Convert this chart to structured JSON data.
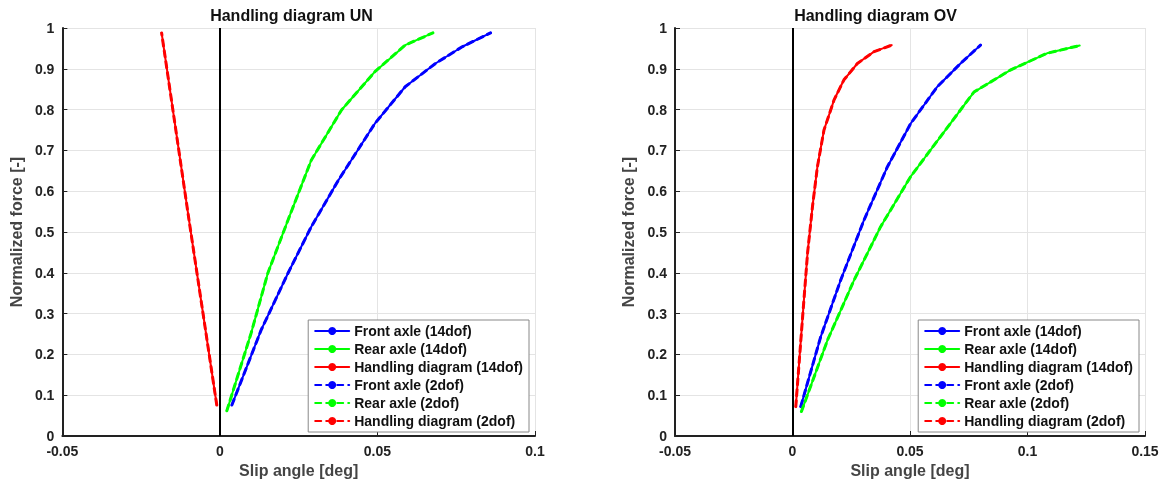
{
  "chart_data": [
    {
      "type": "line",
      "title": "Handling diagram UN",
      "xlabel": "Slip angle [deg]",
      "ylabel": "Normalized force [-]",
      "xlim": [
        -0.05,
        0.1
      ],
      "xticks": [
        -0.05,
        0,
        0.05,
        0.1
      ],
      "ylim": [
        0,
        1
      ],
      "yticks": [
        0,
        0.1,
        0.2,
        0.3,
        0.4,
        0.5,
        0.6,
        0.7,
        0.8,
        0.9,
        1
      ],
      "grid": true,
      "legend": "bottom right",
      "marker": "none",
      "ref_lines": [
        {
          "axis": "x",
          "value": 0,
          "color": "#000000"
        }
      ],
      "series": [
        {
          "name": "Front axle (14dof)",
          "color": "#0000ff",
          "line_style": "solid",
          "x": [
            0.0038,
            0.0131,
            0.0216,
            0.029,
            0.0376,
            0.0492,
            0.0588,
            0.0684,
            0.0769,
            0.0859
          ],
          "values": [
            0.076,
            0.26,
            0.399,
            0.513,
            0.627,
            0.766,
            0.856,
            0.913,
            0.954,
            0.988
          ]
        },
        {
          "name": "Rear axle (14dof)",
          "color": "#00ff00",
          "line_style": "solid",
          "x": [
            0.0022,
            0.0099,
            0.0152,
            0.0216,
            0.029,
            0.0386,
            0.0492,
            0.0588,
            0.0676
          ],
          "values": [
            0.062,
            0.252,
            0.399,
            0.529,
            0.676,
            0.799,
            0.893,
            0.958,
            0.988
          ]
        },
        {
          "name": "Handling diagram (14dof)",
          "color": "#ff0000",
          "line_style": "solid",
          "x": [
            -0.001,
            -0.0098,
            -0.0185
          ],
          "values": [
            0.076,
            0.529,
            0.988
          ]
        },
        {
          "name": "Front axle (2dof)",
          "color": "#0000ff",
          "line_style": "dashed",
          "x": [
            0.0038,
            0.0131,
            0.0216,
            0.029,
            0.0376,
            0.0492,
            0.0588,
            0.0684,
            0.0769,
            0.0859
          ],
          "values": [
            0.076,
            0.26,
            0.399,
            0.513,
            0.627,
            0.766,
            0.856,
            0.913,
            0.954,
            0.988
          ]
        },
        {
          "name": "Rear axle (2dof)",
          "color": "#00ff00",
          "line_style": "dashed",
          "x": [
            0.0022,
            0.0099,
            0.0152,
            0.0216,
            0.029,
            0.0386,
            0.0492,
            0.0588,
            0.0676
          ],
          "values": [
            0.062,
            0.252,
            0.399,
            0.529,
            0.676,
            0.799,
            0.893,
            0.958,
            0.988
          ]
        },
        {
          "name": "Handling diagram (2dof)",
          "color": "#ff0000",
          "line_style": "dashed",
          "x": [
            -0.001,
            -0.0098,
            -0.0185
          ],
          "values": [
            0.076,
            0.529,
            0.988
          ]
        }
      ]
    },
    {
      "type": "line",
      "title": "Handling diagram OV",
      "xlabel": "Slip angle [deg]",
      "ylabel": "Normalized force [-]",
      "xlim": [
        -0.05,
        0.15
      ],
      "xticks": [
        -0.05,
        0,
        0.05,
        0.1,
        0.15
      ],
      "ylim": [
        0,
        1
      ],
      "yticks": [
        0,
        0.1,
        0.2,
        0.3,
        0.4,
        0.5,
        0.6,
        0.7,
        0.8,
        0.9,
        1
      ],
      "grid": true,
      "legend": "bottom right",
      "marker": "none",
      "ref_lines": [
        {
          "axis": "x",
          "value": 0,
          "color": "#000000"
        }
      ],
      "series": [
        {
          "name": "Front axle (14dof)",
          "color": "#0000ff",
          "line_style": "solid",
          "x": [
            0.0035,
            0.012,
            0.0205,
            0.0304,
            0.0404,
            0.0503,
            0.0616,
            0.0715,
            0.08
          ],
          "values": [
            0.072,
            0.243,
            0.382,
            0.529,
            0.66,
            0.766,
            0.856,
            0.913,
            0.958
          ]
        },
        {
          "name": "Rear axle (14dof)",
          "color": "#00ff00",
          "line_style": "solid",
          "x": [
            0.0038,
            0.0149,
            0.0262,
            0.0375,
            0.0503,
            0.063,
            0.0772,
            0.0927,
            0.1083,
            0.1222
          ],
          "values": [
            0.06,
            0.235,
            0.382,
            0.513,
            0.636,
            0.734,
            0.843,
            0.897,
            0.938,
            0.957
          ]
        },
        {
          "name": "Handling diagram (14dof)",
          "color": "#ff0000",
          "line_style": "solid",
          "x": [
            0.0014,
            0.0042,
            0.0064,
            0.0085,
            0.0106,
            0.0134,
            0.0177,
            0.0219,
            0.0276,
            0.0347,
            0.0422
          ],
          "values": [
            0.072,
            0.284,
            0.448,
            0.562,
            0.66,
            0.75,
            0.824,
            0.873,
            0.913,
            0.942,
            0.958
          ]
        },
        {
          "name": "Front axle (2dof)",
          "color": "#0000ff",
          "line_style": "dashed",
          "x": [
            0.0035,
            0.012,
            0.0205,
            0.0304,
            0.0404,
            0.0503,
            0.0616,
            0.0715,
            0.08
          ],
          "values": [
            0.072,
            0.243,
            0.382,
            0.529,
            0.66,
            0.766,
            0.856,
            0.913,
            0.958
          ]
        },
        {
          "name": "Rear axle (2dof)",
          "color": "#00ff00",
          "line_style": "dashed",
          "x": [
            0.0038,
            0.0149,
            0.0262,
            0.0375,
            0.0503,
            0.063,
            0.0772,
            0.0927,
            0.1083,
            0.1222
          ],
          "values": [
            0.06,
            0.235,
            0.382,
            0.513,
            0.636,
            0.734,
            0.843,
            0.897,
            0.938,
            0.957
          ]
        },
        {
          "name": "Handling diagram (2dof)",
          "color": "#ff0000",
          "line_style": "dashed",
          "x": [
            0.0014,
            0.0042,
            0.0064,
            0.0085,
            0.0106,
            0.0134,
            0.0177,
            0.0219,
            0.0276,
            0.0347,
            0.0422
          ],
          "values": [
            0.072,
            0.284,
            0.448,
            0.562,
            0.66,
            0.75,
            0.824,
            0.873,
            0.913,
            0.942,
            0.958
          ]
        }
      ]
    }
  ]
}
